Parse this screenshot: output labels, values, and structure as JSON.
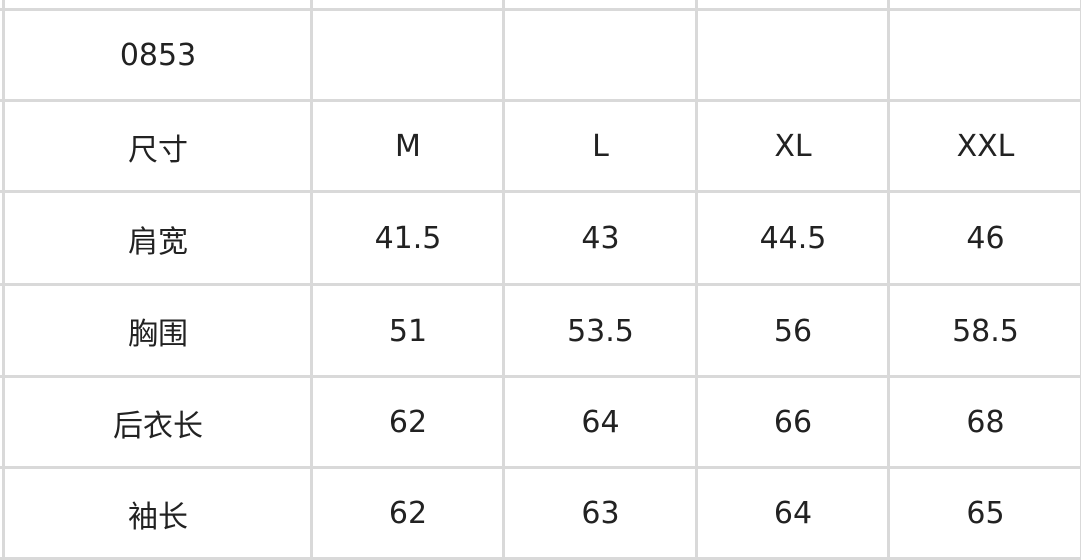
{
  "table": {
    "rows": [
      [
        "0853",
        "",
        "",
        "",
        ""
      ],
      [
        "尺寸",
        "M",
        "L",
        "XL",
        "XXL"
      ],
      [
        "肩宽",
        "41.5",
        "43",
        "44.5",
        "46"
      ],
      [
        "胸围",
        "51",
        "53.5",
        "56",
        "58.5"
      ],
      [
        "后衣长",
        "62",
        "64",
        "66",
        "68"
      ],
      [
        "袖长",
        "62",
        "63",
        "64",
        "65"
      ]
    ]
  },
  "colors": {
    "grid": "#d9d9d9",
    "text": "#222222"
  }
}
